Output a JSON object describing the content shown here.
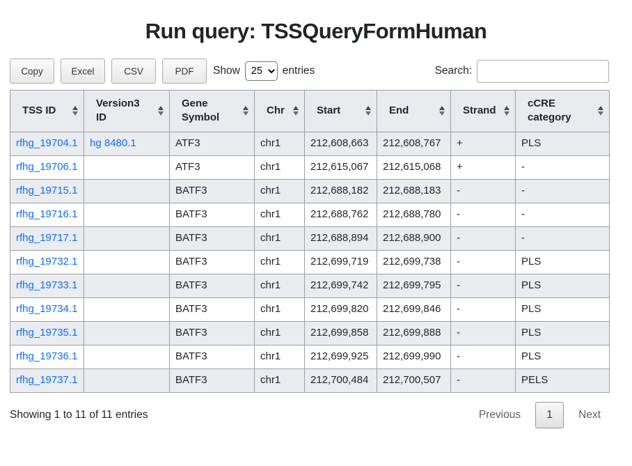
{
  "title": "Run query: TSSQueryFormHuman",
  "toolbar": {
    "buttons": [
      "Copy",
      "Excel",
      "CSV",
      "PDF"
    ],
    "show_label": "Show",
    "page_length": "25",
    "entries_label": "entries"
  },
  "search": {
    "label": "Search:",
    "value": ""
  },
  "table": {
    "columns": [
      "TSS ID",
      "Version3 ID",
      "Gene Symbol",
      "Chr",
      "Start",
      "End",
      "Strand",
      "cCRE category"
    ],
    "rows": [
      [
        "rfhg_19704.1",
        "hg 8480.1",
        "ATF3",
        "chr1",
        "212,608,663",
        "212,608,767",
        "+",
        "PLS"
      ],
      [
        "rfhg_19706.1",
        "",
        "ATF3",
        "chr1",
        "212,615,067",
        "212,615,068",
        "+",
        "-"
      ],
      [
        "rfhg_19715.1",
        "",
        "BATF3",
        "chr1",
        "212,688,182",
        "212,688,183",
        "-",
        "-"
      ],
      [
        "rfhg_19716.1",
        "",
        "BATF3",
        "chr1",
        "212,688,762",
        "212,688,780",
        "-",
        "-"
      ],
      [
        "rfhg_19717.1",
        "",
        "BATF3",
        "chr1",
        "212,688,894",
        "212,688,900",
        "-",
        "-"
      ],
      [
        "rfhg_19732.1",
        "",
        "BATF3",
        "chr1",
        "212,699,719",
        "212,699,738",
        "-",
        "PLS"
      ],
      [
        "rfhg_19733.1",
        "",
        "BATF3",
        "chr1",
        "212,699,742",
        "212,699,795",
        "-",
        "PLS"
      ],
      [
        "rfhg_19734.1",
        "",
        "BATF3",
        "chr1",
        "212,699,820",
        "212,699,846",
        "-",
        "PLS"
      ],
      [
        "rfhg_19735.1",
        "",
        "BATF3",
        "chr1",
        "212,699,858",
        "212,699,888",
        "-",
        "PLS"
      ],
      [
        "rfhg_19736.1",
        "",
        "BATF3",
        "chr1",
        "212,699,925",
        "212,699,990",
        "-",
        "PLS"
      ],
      [
        "rfhg_19737.1",
        "",
        "BATF3",
        "chr1",
        "212,700,484",
        "212,700,507",
        "-",
        "PELS"
      ]
    ],
    "link_columns": [
      0,
      1
    ]
  },
  "footer": {
    "info": "Showing 1 to 11 of 11 entries",
    "previous_label": "Previous",
    "current_page": "1",
    "next_label": "Next"
  },
  "colors": {
    "link": "#0d6efd",
    "header_bg": "#e9ebee",
    "stripe_bg": "#eaecef",
    "border": "#9aa0a6",
    "text": "#212529"
  }
}
